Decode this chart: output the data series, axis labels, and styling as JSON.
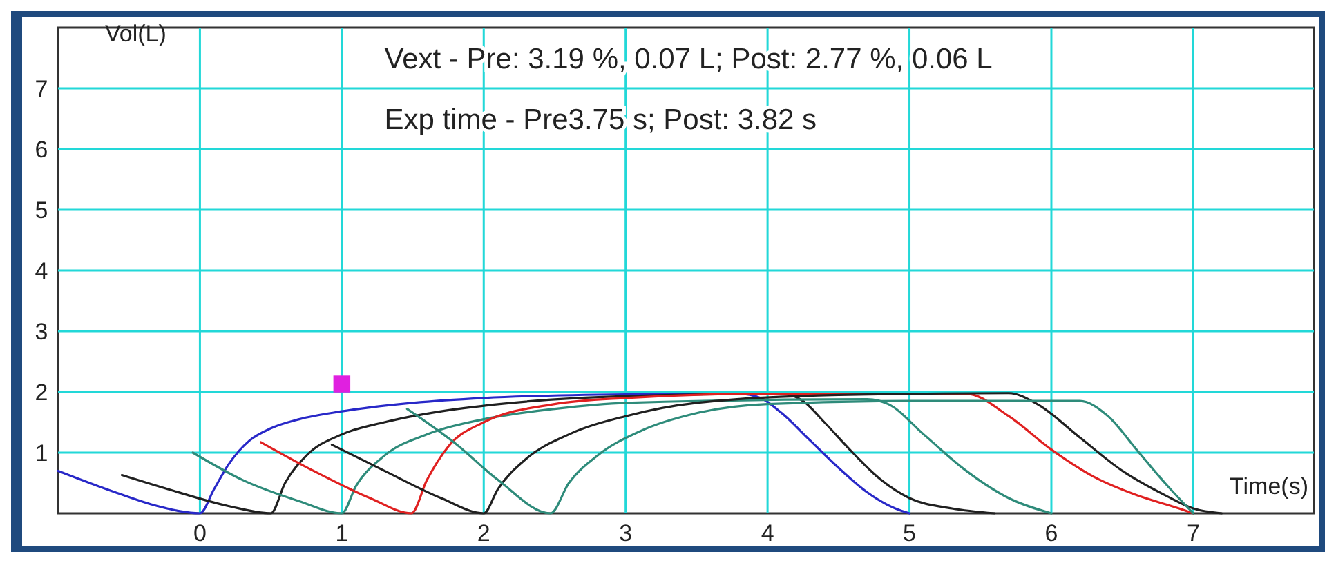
{
  "chart_data": {
    "type": "line",
    "xlabel": "Time(s)",
    "ylabel": "Vol(L)",
    "annotations": [
      "Vext - Pre: 3.19 %,  0.07 L; Post: 2.77 %,  0.06 L",
      "Exp time - Pre3.75 s; Post: 3.82 s"
    ],
    "xlim": [
      -1,
      7.85
    ],
    "ylim": [
      0,
      8
    ],
    "xticks": [
      0,
      1,
      2,
      3,
      4,
      5,
      6,
      7
    ],
    "yticks": [
      1,
      2,
      3,
      4,
      5,
      6,
      7
    ],
    "grid": true,
    "marker": "none",
    "line_style": "solid",
    "series": [
      {
        "color": "#2828c8",
        "x": [
          -1,
          -0.6,
          -0.3,
          0,
          0.1,
          0.2,
          0.35,
          0.5,
          0.7,
          1,
          1.5,
          2,
          3,
          3.8,
          3.95,
          4.1,
          4.3,
          4.5,
          4.7,
          4.9,
          5.0
        ],
        "values": [
          0.7,
          0.35,
          0.12,
          0,
          0.4,
          0.8,
          1.2,
          1.4,
          1.55,
          1.68,
          1.82,
          1.9,
          1.96,
          1.97,
          1.9,
          1.65,
          1.2,
          0.75,
          0.35,
          0.08,
          0
        ]
      },
      {
        "color": "#202020",
        "x": [
          -0.55,
          -0.2,
          0.2,
          0.5,
          0.6,
          0.75,
          1,
          1.3,
          1.7,
          2.2,
          3,
          4.1,
          4.25,
          4.4,
          4.6,
          4.8,
          5.0,
          5.3,
          5.6
        ],
        "values": [
          0.63,
          0.38,
          0.12,
          0,
          0.5,
          0.95,
          1.3,
          1.5,
          1.68,
          1.82,
          1.93,
          1.97,
          1.85,
          1.5,
          1.0,
          0.55,
          0.25,
          0.08,
          0
        ]
      },
      {
        "color": "#2e8b7a",
        "x": [
          -0.05,
          0.3,
          0.7,
          1.0,
          1.1,
          1.3,
          1.6,
          2,
          2.5,
          3,
          4.7,
          4.85,
          5.1,
          5.4,
          5.7,
          6.0
        ],
        "values": [
          1.0,
          0.55,
          0.2,
          0,
          0.45,
          0.95,
          1.3,
          1.55,
          1.72,
          1.82,
          1.88,
          1.8,
          1.3,
          0.7,
          0.25,
          0
        ]
      },
      {
        "color": "#e02020",
        "x": [
          0.43,
          0.8,
          1.2,
          1.49,
          1.6,
          1.75,
          2,
          2.5,
          3,
          4,
          5.4,
          5.7,
          6.0,
          6.3,
          6.6,
          6.9,
          7.0
        ],
        "values": [
          1.17,
          0.7,
          0.25,
          0,
          0.55,
          1.1,
          1.5,
          1.8,
          1.9,
          1.97,
          1.97,
          1.6,
          1.05,
          0.6,
          0.3,
          0.08,
          0
        ]
      },
      {
        "color": "#202020",
        "x": [
          0.93,
          1.3,
          1.7,
          2.0,
          2.1,
          2.3,
          2.6,
          3,
          3.5,
          4.5,
          5.7,
          5.9,
          6.2,
          6.5,
          6.8,
          7.0,
          7.2
        ],
        "values": [
          1.13,
          0.7,
          0.25,
          0,
          0.4,
          0.9,
          1.3,
          1.6,
          1.82,
          1.95,
          1.98,
          1.8,
          1.25,
          0.7,
          0.3,
          0.08,
          0
        ]
      },
      {
        "color": "#2e8b7a",
        "x": [
          1.46,
          1.8,
          2.1,
          2.47,
          2.6,
          2.8,
          3.1,
          3.5,
          4,
          5,
          6.2,
          6.4,
          6.6,
          6.8,
          7.0
        ],
        "values": [
          1.72,
          1.15,
          0.55,
          0,
          0.5,
          0.95,
          1.35,
          1.65,
          1.8,
          1.85,
          1.85,
          1.6,
          1.05,
          0.5,
          0
        ]
      },
      {
        "type": "scatter",
        "marker": "square",
        "color": "#e020e0",
        "x": [
          1.0
        ],
        "values": [
          2.13
        ]
      }
    ]
  }
}
